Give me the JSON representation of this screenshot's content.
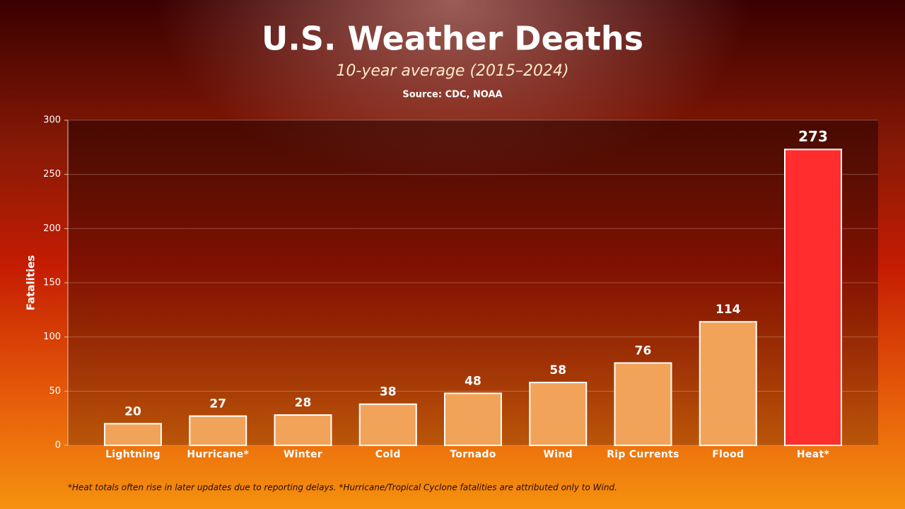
{
  "chart_data": {
    "type": "bar",
    "title": "U.S. Weather Deaths",
    "subtitle": "10-year average (2015–2024)",
    "source": "Source: CDC, NOAA",
    "y_label": "Fatalities",
    "categories": [
      "Lightning",
      "Hurricane*",
      "Winter",
      "Cold",
      "Tornado",
      "Wind",
      "Rip Currents",
      "Flood",
      "Heat*"
    ],
    "values": [
      20,
      27,
      28,
      38,
      48,
      58,
      76,
      114,
      273
    ],
    "colors": [
      "#f2a35a",
      "#f2a35a",
      "#f2a35a",
      "#f2a35a",
      "#f2a35a",
      "#f2a35a",
      "#f2a35a",
      "#f2a35a",
      "#ff2d2d"
    ],
    "ylim": [
      0,
      300
    ],
    "yticks": [
      0,
      50,
      100,
      150,
      200,
      250,
      300
    ],
    "grid": true,
    "footnote": "*Heat totals often rise in later updates due to reporting delays.   *Hurricane/Tropical Cyclone fatalities are attributed only to Wind."
  }
}
